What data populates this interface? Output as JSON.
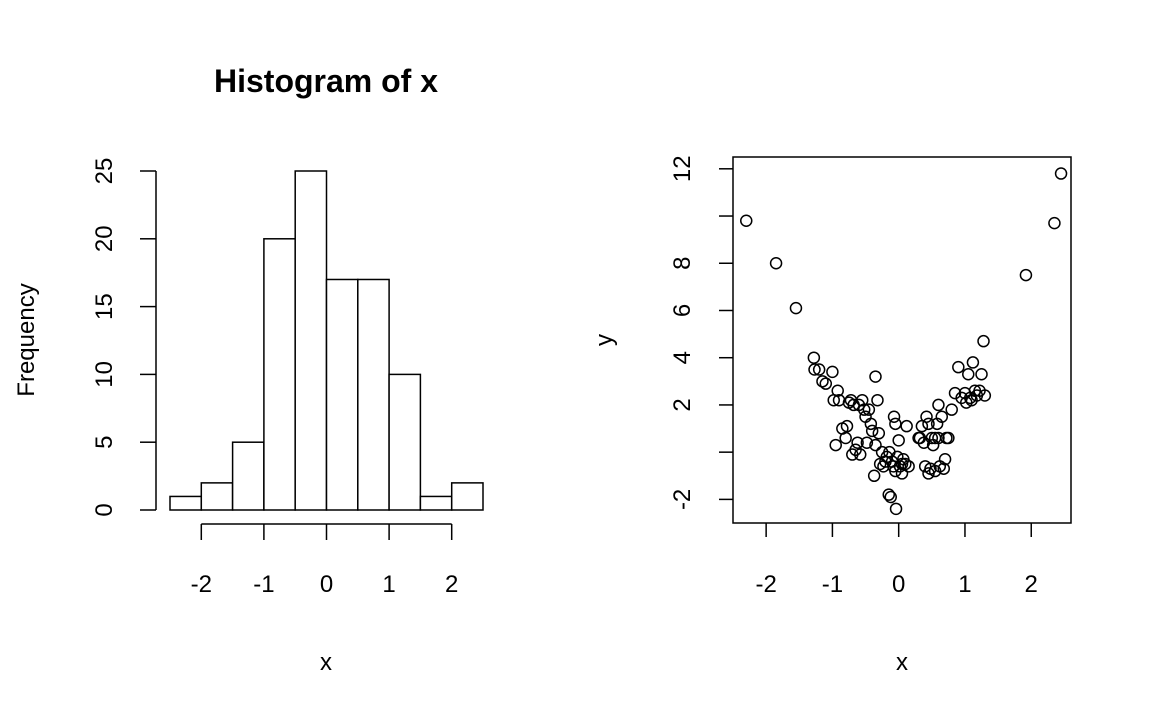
{
  "chart_data": [
    {
      "type": "bar",
      "title": "Histogram of x",
      "xlabel": "x",
      "ylabel": "Frequency",
      "bin_edges": [
        -2.5,
        -2.0,
        -1.5,
        -1.0,
        -0.5,
        0.0,
        0.5,
        1.0,
        1.5,
        2.0,
        2.5
      ],
      "values": [
        1,
        2,
        5,
        20,
        25,
        17,
        17,
        10,
        1,
        2
      ],
      "xticks": [
        -2,
        -1,
        0,
        1,
        2
      ],
      "yticks": [
        0,
        5,
        10,
        15,
        20,
        25
      ],
      "xlim": [
        -2.5,
        2.5
      ],
      "ylim": [
        0,
        25
      ],
      "grid": false
    },
    {
      "type": "scatter",
      "title": "",
      "xlabel": "x",
      "ylabel": "y",
      "xlim": [
        -2.5,
        2.6
      ],
      "ylim": [
        -3.0,
        12.5
      ],
      "xticks": [
        -2,
        -1,
        0,
        1,
        2
      ],
      "yticks": [
        -2,
        0,
        2,
        4,
        6,
        8,
        10,
        12
      ],
      "yticklabels": [
        "-2",
        "",
        "2",
        "4",
        "6",
        "8",
        "",
        "12"
      ],
      "grid": false,
      "x": [
        -2.3,
        -1.85,
        -1.55,
        -1.28,
        -1.27,
        -1.2,
        -1.15,
        -1.1,
        -1.0,
        -0.98,
        -0.95,
        -0.92,
        -0.9,
        -0.85,
        -0.8,
        -0.78,
        -0.75,
        -0.72,
        -0.7,
        -0.68,
        -0.65,
        -0.62,
        -0.6,
        -0.58,
        -0.55,
        -0.52,
        -0.5,
        -0.48,
        -0.45,
        -0.42,
        -0.4,
        -0.37,
        -0.35,
        -0.32,
        -0.3,
        -0.28,
        -0.25,
        -0.23,
        -0.2,
        -0.18,
        -0.15,
        -0.14,
        -0.12,
        -0.1,
        -0.08,
        -0.07,
        -0.05,
        -0.04,
        -0.02,
        0.0,
        0.02,
        0.05,
        0.07,
        0.1,
        0.12,
        0.15,
        0.3,
        0.32,
        0.35,
        0.38,
        0.4,
        0.42,
        0.45,
        0.48,
        0.5,
        0.52,
        0.55,
        0.58,
        0.6,
        0.62,
        0.65,
        0.68,
        0.7,
        0.72,
        0.75,
        0.8,
        0.85,
        0.9,
        0.95,
        1.0,
        1.02,
        1.05,
        1.08,
        1.1,
        1.12,
        1.15,
        1.18,
        1.22,
        1.25,
        1.28,
        1.3,
        1.92,
        2.35,
        2.45,
        -0.35,
        0.05,
        -0.05,
        0.45,
        0.55,
        0.6
      ],
      "y": [
        9.8,
        8.0,
        6.1,
        4.0,
        3.5,
        3.5,
        3.0,
        2.9,
        3.4,
        2.2,
        0.3,
        2.6,
        2.2,
        1.0,
        0.6,
        1.1,
        2.1,
        2.2,
        -0.1,
        2.0,
        0.1,
        0.4,
        2.0,
        -0.1,
        2.2,
        1.8,
        1.5,
        0.4,
        1.8,
        1.2,
        0.9,
        -1.0,
        3.2,
        2.2,
        0.8,
        -0.5,
        0.0,
        -0.6,
        -0.4,
        -0.2,
        -1.8,
        0.0,
        -1.9,
        -0.4,
        -0.6,
        1.5,
        1.2,
        -2.4,
        -0.2,
        0.5,
        -0.6,
        -0.9,
        -0.3,
        -0.5,
        1.1,
        -0.6,
        0.6,
        0.6,
        1.1,
        0.4,
        -0.6,
        1.5,
        1.2,
        -0.7,
        0.6,
        0.3,
        0.6,
        1.2,
        2.0,
        -0.6,
        1.5,
        -0.7,
        -0.3,
        0.6,
        0.6,
        1.8,
        2.5,
        3.6,
        2.3,
        2.5,
        2.1,
        3.3,
        2.3,
        2.2,
        3.8,
        2.6,
        2.4,
        2.6,
        3.3,
        4.7,
        2.4,
        7.5,
        9.7,
        11.8,
        0.3,
        -0.5,
        -0.8,
        -0.9,
        -0.8,
        0.6
      ]
    }
  ]
}
